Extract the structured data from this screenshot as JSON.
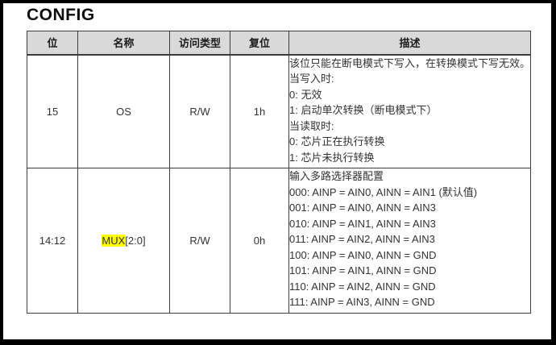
{
  "title": "CONFIG",
  "colors": {
    "header_bg": "#d9d9d9",
    "highlight": "#ffff00",
    "frame": "#000000",
    "border": "#3c3c3c",
    "text": "#333333"
  },
  "table": {
    "headers": {
      "bit": "位",
      "name": "名称",
      "access": "访问类型",
      "reset": "复位",
      "desc": "描述"
    },
    "rows": [
      {
        "bit": "15",
        "name": "OS",
        "access": "R/W",
        "reset": "1h",
        "desc_lines": [
          "该位只能在断电模式下写入，在转换模式下写无效。",
          "当写入时:",
          "0: 无效",
          "1: 启动单次转换（断电模式下）",
          "当读取时:",
          "0: 芯片正在执行转换",
          "1: 芯片未执行转换"
        ]
      },
      {
        "bit": "14:12",
        "name_highlight": "MUX",
        "name_rest": "[2:0]",
        "access": "R/W",
        "reset": "0h",
        "desc_lines": [
          "输入多路选择器配置",
          "000: AINP = AIN0, AINN = AIN1 (默认值)",
          "001: AINP = AIN0, AINN = AIN3",
          "010: AINP = AIN1, AINN = AIN3",
          "011: AINP = AIN2, AINN = AIN3",
          "100: AINP = AIN0, AINN = GND",
          "101: AINP = AIN1, AINN = GND",
          "110: AINP = AIN2, AINN = GND",
          "111: AINP = AIN3, AINN = GND"
        ]
      }
    ]
  }
}
